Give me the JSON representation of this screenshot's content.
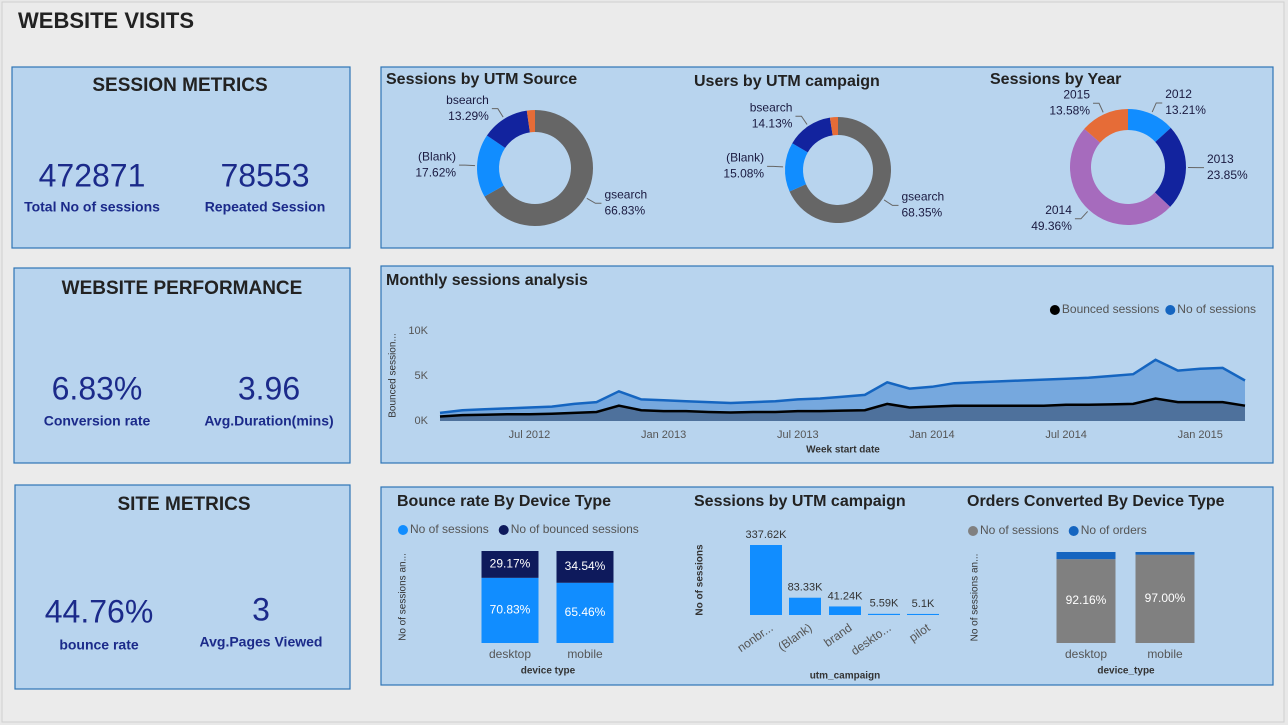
{
  "title": "WEBSITE VISITS",
  "kpi_panels": [
    {
      "title": "SESSION METRICS",
      "metrics": [
        {
          "value": 472871,
          "caption": "Total No of sessions"
        },
        {
          "value": 78553,
          "caption": "Repeated Session"
        }
      ]
    },
    {
      "title": "WEBSITE PERFORMANCE",
      "metrics": [
        {
          "value": "6.83%",
          "caption": "Conversion rate"
        },
        {
          "value": 3.96,
          "caption": "Avg.Duration(mins)"
        }
      ]
    },
    {
      "title": "SITE METRICS",
      "metrics": [
        {
          "value": "44.76%",
          "caption": "bounce rate"
        },
        {
          "value": 3,
          "caption": "Avg.Pages Viewed"
        }
      ]
    }
  ],
  "chart_data": [
    {
      "type": "donut",
      "title": "Sessions by UTM Source",
      "categories": [
        "gsearch",
        "(Blank)",
        "bsearch",
        null
      ],
      "values": [
        66.83,
        17.62,
        13.29,
        2.26
      ],
      "value_labels": [
        "66.83%",
        "17.62%",
        "13.29%",
        null
      ],
      "colors": [
        "#666666",
        "#118dff",
        "#12239e",
        "#e66c37"
      ]
    },
    {
      "type": "donut",
      "title": "Users by UTM campaign",
      "categories": [
        "gsearch",
        "(Blank)",
        "bsearch",
        null
      ],
      "values": [
        68.35,
        15.08,
        14.13,
        2.44
      ],
      "value_labels": [
        "68.35%",
        "15.08%",
        "14.13%",
        null
      ],
      "colors": [
        "#666666",
        "#118dff",
        "#12239e",
        "#e66c37"
      ]
    },
    {
      "type": "donut",
      "title": "Sessions by Year",
      "categories": [
        "2012",
        "2013",
        "2014",
        "2015"
      ],
      "values": [
        13.21,
        23.85,
        49.36,
        13.58
      ],
      "value_labels": [
        "13.21%",
        "23.85%",
        "49.36%",
        "13.58%"
      ],
      "colors": [
        "#118dff",
        "#12239e",
        "#a66bbd",
        "#e66c37"
      ]
    },
    {
      "type": "area",
      "title": "Monthly sessions analysis",
      "x": [
        "2012-03",
        "2012-04",
        "2012-05",
        "2012-06",
        "2012-07",
        "2012-08",
        "2012-09",
        "2012-10",
        "2012-11",
        "2012-12",
        "2013-01",
        "2013-02",
        "2013-03",
        "2013-04",
        "2013-05",
        "2013-06",
        "2013-07",
        "2013-08",
        "2013-09",
        "2013-10",
        "2013-11",
        "2013-12",
        "2014-01",
        "2014-02",
        "2014-03",
        "2014-04",
        "2014-05",
        "2014-06",
        "2014-07",
        "2014-08",
        "2014-09",
        "2014-10",
        "2014-11",
        "2014-12",
        "2015-01",
        "2015-02",
        "2015-03"
      ],
      "series": [
        {
          "name": "Bounced sessions",
          "color": "#000000",
          "fill": "#4a6a95",
          "values": [
            500,
            650,
            700,
            750,
            750,
            800,
            900,
            1000,
            1700,
            1200,
            1100,
            1100,
            1000,
            950,
            1000,
            1000,
            1100,
            1100,
            1150,
            1200,
            1900,
            1500,
            1600,
            1700,
            1700,
            1700,
            1700,
            1700,
            1800,
            1800,
            1850,
            1900,
            2500,
            2100,
            2100,
            2100,
            1700
          ]
        },
        {
          "name": "No of sessions",
          "color": "#1565c0",
          "fill": "#6fa3dc",
          "values": [
            900,
            1200,
            1300,
            1400,
            1500,
            1600,
            1900,
            2100,
            3300,
            2400,
            2300,
            2200,
            2100,
            2000,
            2100,
            2200,
            2400,
            2500,
            2700,
            2900,
            4300,
            3600,
            3800,
            4200,
            4300,
            4400,
            4500,
            4600,
            4700,
            4800,
            5000,
            5200,
            6800,
            5600,
            5800,
            5900,
            4500
          ]
        }
      ],
      "xlim": [
        "2012-03",
        "2015-03"
      ],
      "xticks": [
        {
          "value": "2012-07",
          "label": "Jul 2012"
        },
        {
          "value": "2013-01",
          "label": "Jan 2013"
        },
        {
          "value": "2013-07",
          "label": "Jul 2013"
        },
        {
          "value": "2014-01",
          "label": "Jan 2014"
        },
        {
          "value": "2014-07",
          "label": "Jul 2014"
        },
        {
          "value": "2015-01",
          "label": "Jan 2015"
        }
      ],
      "ylim": [
        0,
        11000
      ],
      "yticks": [
        {
          "value": 0,
          "label": "0K"
        },
        {
          "value": 5000,
          "label": "5K"
        },
        {
          "value": 10000,
          "label": "10K"
        }
      ],
      "xlabel": "Week start date",
      "ylabel": "Bounced session...",
      "legend": "top-right"
    },
    {
      "type": "stacked_bar",
      "title": "Bounce rate By Device Type",
      "categories": [
        "desktop",
        "mobile"
      ],
      "series": [
        {
          "name": "No of sessions",
          "color": "#118dff",
          "values": [
            70.83,
            65.46
          ],
          "value_labels": [
            "70.83%",
            "65.46%"
          ]
        },
        {
          "name": "No of bounced sessions",
          "color": "#0e1a5c",
          "values": [
            29.17,
            34.54
          ],
          "value_labels": [
            "29.17%",
            "34.54%"
          ]
        }
      ],
      "xlabel": "device type",
      "ylabel": "No of sessions an...",
      "legend": "top-left"
    },
    {
      "type": "bar",
      "title": "Sessions by UTM campaign",
      "categories": [
        "nonbr...",
        "(Blank)",
        "brand",
        "deskto...",
        "pilot"
      ],
      "values": [
        337620,
        83330,
        41240,
        5590,
        5100
      ],
      "value_labels": [
        "337.62K",
        "83.33K",
        "41.24K",
        "5.59K",
        "5.1K"
      ],
      "color": "#118dff",
      "xlabel": "utm_campaign",
      "ylabel": "No of sessions"
    },
    {
      "type": "stacked_bar",
      "title": "Orders Converted By Device Type",
      "categories": [
        "desktop",
        "mobile"
      ],
      "series": [
        {
          "name": "No of sessions",
          "color": "#808080",
          "values": [
            92.16,
            97.0
          ],
          "value_labels": [
            "92.16%",
            "97.00%"
          ]
        },
        {
          "name": "No of orders",
          "color": "#1565c0",
          "values": [
            7.84,
            3.0
          ],
          "value_labels": [
            null,
            null
          ]
        }
      ],
      "xlabel": "device_type",
      "ylabel": "No of sessions an...",
      "legend": "top-left"
    }
  ]
}
